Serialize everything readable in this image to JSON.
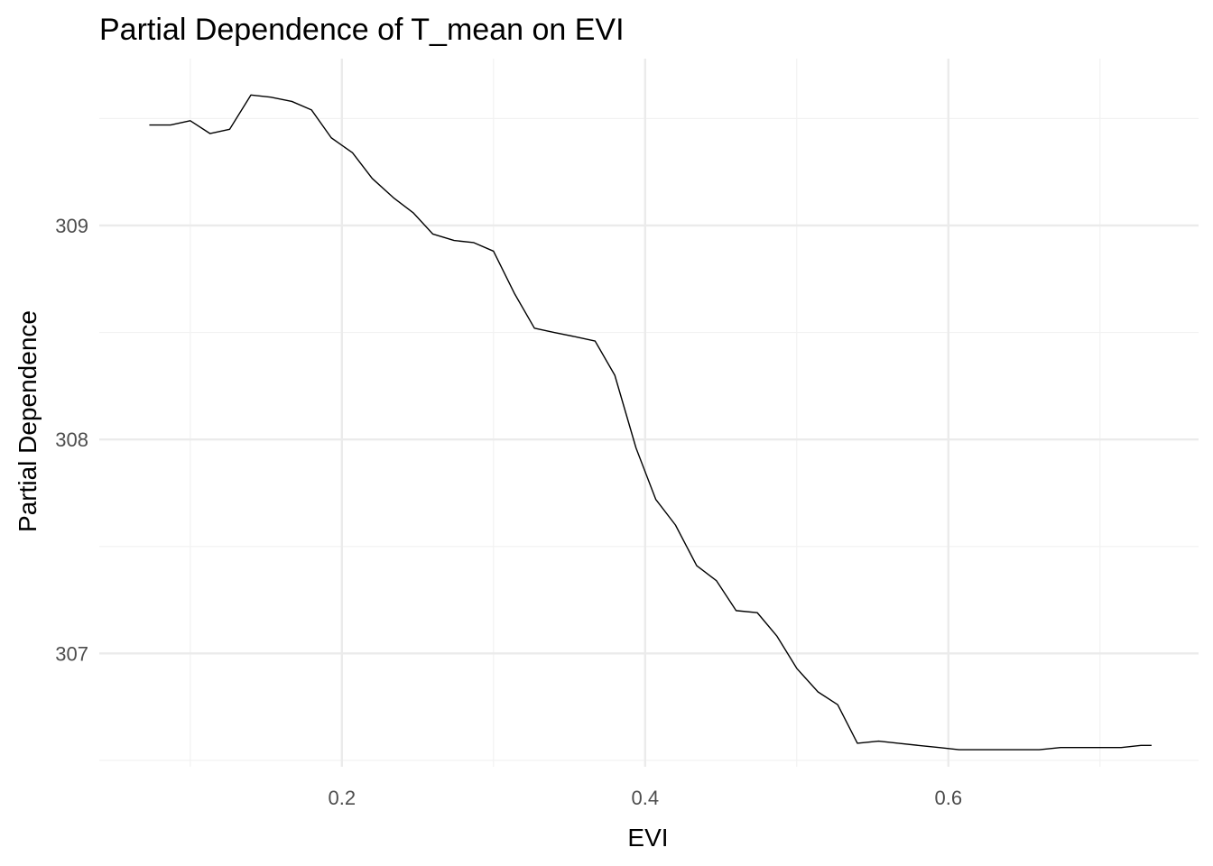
{
  "chart_data": {
    "type": "line",
    "title": "Partial Dependence of T_mean on EVI",
    "xlabel": "EVI",
    "ylabel": "Partial Dependence",
    "xlim": [
      0.04,
      0.765
    ],
    "ylim": [
      306.47,
      309.78
    ],
    "x_major_ticks": [
      0.2,
      0.4,
      0.6
    ],
    "x_tick_labels": [
      "0.2",
      "0.4",
      "0.6"
    ],
    "x_minor_ticks": [
      0.1,
      0.3,
      0.5,
      0.7
    ],
    "y_major_ticks": [
      307,
      308,
      309
    ],
    "y_tick_labels": [
      "307",
      "308",
      "309"
    ],
    "y_minor_ticks": [
      306.5,
      307.5,
      308.5,
      309.5
    ],
    "grid": true,
    "line_color": "#000000",
    "series": [
      {
        "x": [
          0.073,
          0.087,
          0.1,
          0.113,
          0.126,
          0.14,
          0.153,
          0.167,
          0.18,
          0.193,
          0.207,
          0.22,
          0.234,
          0.247,
          0.26,
          0.274,
          0.287,
          0.3,
          0.314,
          0.327,
          0.34,
          0.354,
          0.367,
          0.38,
          0.394,
          0.407,
          0.42,
          0.434,
          0.447,
          0.46,
          0.474,
          0.487,
          0.5,
          0.514,
          0.527,
          0.54,
          0.554,
          0.567,
          0.58,
          0.594,
          0.607,
          0.62,
          0.634,
          0.647,
          0.66,
          0.674,
          0.687,
          0.7,
          0.714,
          0.727,
          0.734
        ],
        "y": [
          309.47,
          309.47,
          309.49,
          309.43,
          309.45,
          309.61,
          309.6,
          309.58,
          309.54,
          309.41,
          309.34,
          309.22,
          309.13,
          309.06,
          308.96,
          308.93,
          308.92,
          308.88,
          308.68,
          308.52,
          308.5,
          308.48,
          308.46,
          308.3,
          307.96,
          307.72,
          307.6,
          307.41,
          307.34,
          307.2,
          307.19,
          307.08,
          306.93,
          306.82,
          306.76,
          306.58,
          306.59,
          306.58,
          306.57,
          306.56,
          306.55,
          306.55,
          306.55,
          306.55,
          306.55,
          306.56,
          306.56,
          306.56,
          306.56,
          306.57,
          306.57
        ]
      }
    ]
  }
}
